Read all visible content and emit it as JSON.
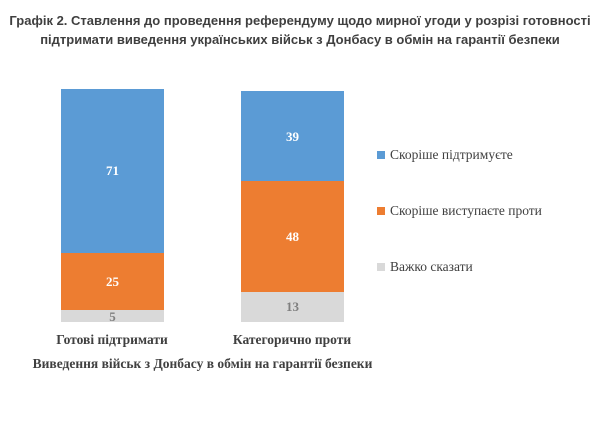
{
  "title": "Графік 2. Ставлення до проведення референдуму щодо мирної угоди у розрізі готовності підтримати виведення українських військ з Донбасу в обмін на гарантії безпеки",
  "chart_data": {
    "type": "bar",
    "stacked": true,
    "orientation": "vertical",
    "categories": [
      "Готові підтримати",
      "Категорично проти"
    ],
    "series": [
      {
        "name": "Скоріше підтримуєте",
        "color": "#5B9BD5",
        "label_color": "#FFFFFF",
        "values": [
          71,
          39
        ]
      },
      {
        "name": "Скоріше виступаєте проти",
        "color": "#ED7D31",
        "label_color": "#FFFFFF",
        "values": [
          25,
          48
        ]
      },
      {
        "name": "Важко сказати",
        "color": "#D9D9D9",
        "label_color": "#7F7F7F",
        "values": [
          5,
          13
        ]
      }
    ],
    "xlabel": "Виведення військ з Донбасу в обмін на гарантії безпеки",
    "ylim": [
      0,
      101
    ],
    "grid": false,
    "legend_position": "right",
    "value_labels": true
  }
}
